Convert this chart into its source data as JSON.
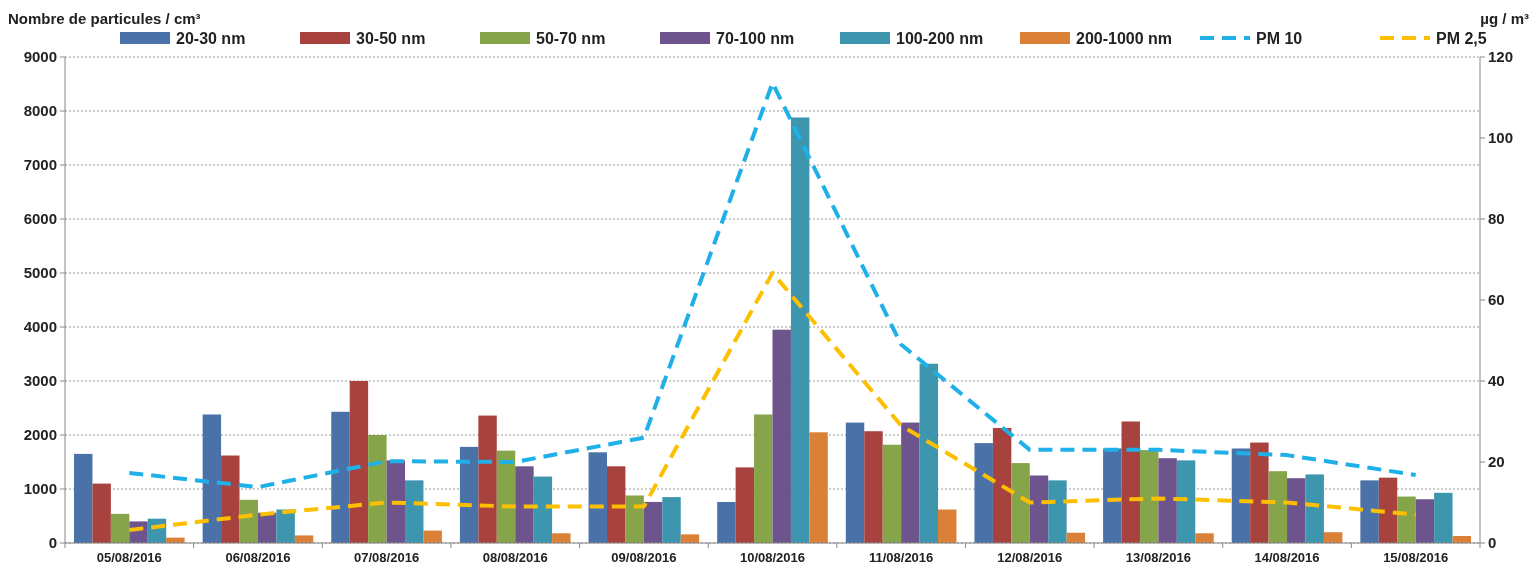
{
  "chart_data": {
    "type": "bar",
    "ylabel": "Nombre de particules / cm³",
    "y2label": "µg / m³",
    "categories": [
      "05/08/2016",
      "06/08/2016",
      "07/08/2016",
      "08/08/2016",
      "09/08/2016",
      "10/08/2016",
      "11/08/2016",
      "12/08/2016",
      "13/08/2016",
      "14/08/2016",
      "15/08/2016"
    ],
    "series": [
      {
        "name": "20-30 nm",
        "color": "#4a72a8",
        "values": [
          1650,
          2380,
          2430,
          1780,
          1680,
          760,
          2230,
          1850,
          1750,
          1750,
          1160
        ]
      },
      {
        "name": "30-50 nm",
        "color": "#a8423f",
        "values": [
          1100,
          1620,
          3000,
          2360,
          1420,
          1400,
          2070,
          2130,
          2250,
          1860,
          1210
        ]
      },
      {
        "name": "50-70 nm",
        "color": "#86a44a",
        "values": [
          540,
          800,
          2000,
          1710,
          880,
          2380,
          1820,
          1480,
          1720,
          1330,
          860
        ]
      },
      {
        "name": "70-100 nm",
        "color": "#6e548d",
        "values": [
          400,
          560,
          1530,
          1420,
          760,
          3950,
          2230,
          1250,
          1570,
          1200,
          810
        ]
      },
      {
        "name": "100-200 nm",
        "color": "#3d96ae",
        "values": [
          450,
          620,
          1160,
          1230,
          850,
          7880,
          3320,
          1160,
          1530,
          1270,
          930
        ]
      },
      {
        "name": "200-1000 nm",
        "color": "#da8137",
        "values": [
          100,
          140,
          230,
          180,
          160,
          2050,
          620,
          190,
          180,
          200,
          130
        ]
      },
      {
        "name": "PM 10",
        "type": "line",
        "axis": "y2",
        "line_style": "dashed",
        "color": "#1fb0e8",
        "values": [
          17.3,
          13.8,
          20.2,
          20,
          26,
          113.6,
          49,
          23,
          23,
          21.7,
          16.8
        ]
      },
      {
        "name": "PM 2,5",
        "type": "line",
        "axis": "y2",
        "line_style": "dashed",
        "color": "#fcc000",
        "values": [
          3.2,
          7,
          10,
          9,
          9,
          66.7,
          29,
          10,
          11,
          10,
          7
        ]
      }
    ],
    "ylim": [
      0,
      9000
    ],
    "yticks": [
      0,
      1000,
      2000,
      3000,
      4000,
      5000,
      6000,
      7000,
      8000,
      9000
    ],
    "y2lim": [
      0,
      120
    ],
    "y2ticks": [
      0,
      20,
      40,
      60,
      80,
      100,
      120
    ],
    "grid": "y",
    "legend": "top",
    "marker": "none"
  }
}
